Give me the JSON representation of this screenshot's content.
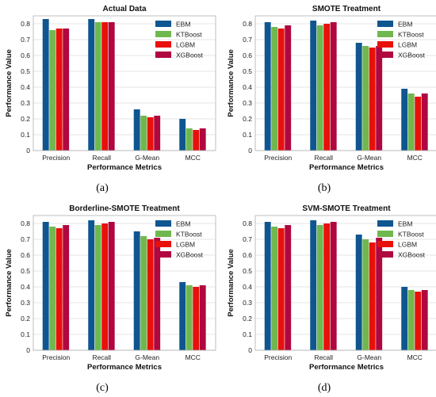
{
  "chart_data": [
    {
      "type": "bar",
      "title": "Actual Data",
      "xlabel": "Performance Metrics",
      "ylabel": "Performance Value",
      "categories": [
        "Precision",
        "Recall",
        "G-Mean",
        "MCC"
      ],
      "ylim": [
        0,
        0.85
      ],
      "yticks": [
        "0",
        "0.1",
        "0.2",
        "0.3",
        "0.4",
        "0.5",
        "0.6",
        "0.7",
        "0.8"
      ],
      "grid": true,
      "legend": "top-right",
      "caption": "(a)",
      "series": [
        {
          "name": "EBM",
          "values": [
            0.83,
            0.83,
            0.26,
            0.2
          ]
        },
        {
          "name": "KTBoost",
          "values": [
            0.76,
            0.81,
            0.22,
            0.14
          ]
        },
        {
          "name": "LGBM",
          "values": [
            0.77,
            0.81,
            0.21,
            0.13
          ]
        },
        {
          "name": "XGBoost",
          "values": [
            0.77,
            0.81,
            0.22,
            0.14
          ]
        }
      ]
    },
    {
      "type": "bar",
      "title": "SMOTE Treatment",
      "xlabel": "Performance Metrics",
      "ylabel": "Performance Value",
      "categories": [
        "Precision",
        "Recall",
        "G-Mean",
        "MCC"
      ],
      "ylim": [
        0,
        0.85
      ],
      "yticks": [
        "0",
        "0.1",
        "0.2",
        "0.3",
        "0.4",
        "0.5",
        "0.6",
        "0.7",
        "0.8"
      ],
      "grid": true,
      "legend": "top-right",
      "caption": "(b)",
      "series": [
        {
          "name": "EBM",
          "values": [
            0.81,
            0.82,
            0.68,
            0.39
          ]
        },
        {
          "name": "KTBoost",
          "values": [
            0.78,
            0.79,
            0.66,
            0.36
          ]
        },
        {
          "name": "LGBM",
          "values": [
            0.77,
            0.8,
            0.65,
            0.34
          ]
        },
        {
          "name": "XGBoost",
          "values": [
            0.79,
            0.81,
            0.66,
            0.36
          ]
        }
      ]
    },
    {
      "type": "bar",
      "title": "Borderline-SMOTE Treatment",
      "xlabel": "Performance Metrics",
      "ylabel": "Performance Value",
      "categories": [
        "Precision",
        "Recall",
        "G-Mean",
        "MCC"
      ],
      "ylim": [
        0,
        0.85
      ],
      "yticks": [
        "0",
        "0.1",
        "0.2",
        "0.3",
        "0.4",
        "0.5",
        "0.6",
        "0.7",
        "0.8"
      ],
      "grid": true,
      "legend": "top-right",
      "caption": "(c)",
      "series": [
        {
          "name": "EBM",
          "values": [
            0.81,
            0.82,
            0.75,
            0.43
          ]
        },
        {
          "name": "KTBoost",
          "values": [
            0.78,
            0.79,
            0.72,
            0.41
          ]
        },
        {
          "name": "LGBM",
          "values": [
            0.77,
            0.8,
            0.7,
            0.4
          ]
        },
        {
          "name": "XGBoost",
          "values": [
            0.79,
            0.81,
            0.71,
            0.41
          ]
        }
      ]
    },
    {
      "type": "bar",
      "title": "SVM-SMOTE Treatment",
      "xlabel": "Performance Metrics",
      "ylabel": "Performance Value",
      "categories": [
        "Precision",
        "Recall",
        "G-Mean",
        "MCC"
      ],
      "ylim": [
        0,
        0.85
      ],
      "yticks": [
        "0",
        "0.1",
        "0.2",
        "0.3",
        "0.4",
        "0.5",
        "0.6",
        "0.7",
        "0.8"
      ],
      "grid": true,
      "legend": "top-right",
      "caption": "(d)",
      "series": [
        {
          "name": "EBM",
          "values": [
            0.81,
            0.82,
            0.73,
            0.4
          ]
        },
        {
          "name": "KTBoost",
          "values": [
            0.78,
            0.79,
            0.7,
            0.38
          ]
        },
        {
          "name": "LGBM",
          "values": [
            0.77,
            0.8,
            0.68,
            0.37
          ]
        },
        {
          "name": "XGBoost",
          "values": [
            0.79,
            0.81,
            0.71,
            0.38
          ]
        }
      ]
    }
  ],
  "colors": {
    "EBM": "#0f5690",
    "KTBoost": "#70b84e",
    "LGBM": "#e8100b",
    "XGBoost": "#b0073f"
  }
}
